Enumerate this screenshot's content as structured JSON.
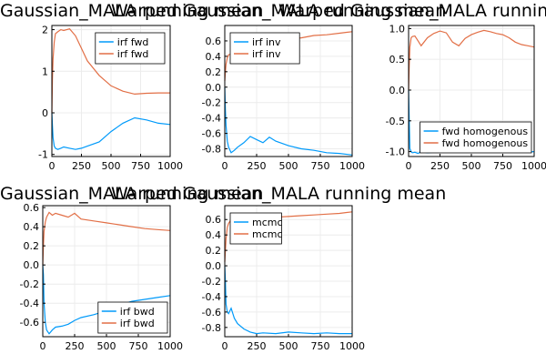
{
  "colors": {
    "series1": "#009AFA",
    "series2": "#E26F46"
  },
  "chart_data": [
    {
      "type": "line",
      "title": "Gaussian_MALA running mean",
      "xlim": [
        0,
        1000
      ],
      "ylim": [
        -1.05,
        2.1
      ],
      "xticks": [
        0,
        250,
        500,
        750,
        1000
      ],
      "yticks": [
        -1,
        0,
        1,
        2
      ],
      "ytick_labels": [
        "-1",
        "0",
        "1",
        "2"
      ],
      "grid": true,
      "legend": "top-right",
      "series": [
        {
          "name": "irf fwd",
          "x": [
            0,
            5,
            10,
            20,
            30,
            50,
            75,
            100,
            150,
            200,
            250,
            300,
            400,
            500,
            600,
            700,
            800,
            900,
            1000
          ],
          "y": [
            0,
            -0.3,
            -0.6,
            -0.8,
            -0.85,
            -0.88,
            -0.85,
            -0.82,
            -0.85,
            -0.88,
            -0.85,
            -0.8,
            -0.7,
            -0.45,
            -0.25,
            -0.12,
            -0.17,
            -0.25,
            -0.28
          ]
        },
        {
          "name": "irf fwd",
          "x": [
            0,
            5,
            10,
            20,
            30,
            50,
            75,
            100,
            150,
            200,
            250,
            300,
            400,
            500,
            600,
            700,
            800,
            900,
            1000
          ],
          "y": [
            0,
            0.8,
            1.3,
            1.7,
            1.9,
            1.95,
            2.0,
            1.98,
            2.02,
            1.85,
            1.55,
            1.25,
            0.9,
            0.65,
            0.52,
            0.45,
            0.47,
            0.48,
            0.48
          ]
        }
      ]
    },
    {
      "type": "line",
      "title": "Warped Gaussian_MALA running mean",
      "xlim": [
        0,
        1000
      ],
      "ylim": [
        -0.9,
        0.8
      ],
      "xticks": [
        0,
        250,
        500,
        750,
        1000
      ],
      "yticks": [
        -0.8,
        -0.6,
        -0.4,
        -0.2,
        0,
        0.2,
        0.4,
        0.6
      ],
      "ytick_labels": [
        "-0.8",
        "-0.6",
        "-0.4",
        "-0.2",
        "0.0",
        "0.2",
        "0.4",
        "0.6"
      ],
      "grid": true,
      "legend": "top-left",
      "series": [
        {
          "name": "irf inv",
          "x": [
            0,
            5,
            10,
            20,
            30,
            50,
            75,
            100,
            150,
            200,
            250,
            300,
            350,
            400,
            500,
            600,
            700,
            800,
            900,
            1000
          ],
          "y": [
            0,
            -0.3,
            -0.5,
            -0.7,
            -0.78,
            -0.85,
            -0.82,
            -0.78,
            -0.72,
            -0.64,
            -0.68,
            -0.72,
            -0.65,
            -0.7,
            -0.76,
            -0.8,
            -0.82,
            -0.85,
            -0.86,
            -0.88
          ]
        },
        {
          "name": "irf inv",
          "x": [
            0,
            5,
            10,
            20,
            30,
            50,
            75,
            100,
            150,
            200,
            250,
            300,
            350,
            400,
            500,
            600,
            700,
            800,
            900,
            1000
          ],
          "y": [
            0.08,
            0.2,
            0.3,
            0.38,
            0.42,
            0.43,
            0.44,
            0.45,
            0.46,
            0.48,
            0.52,
            0.56,
            0.6,
            0.62,
            0.63,
            0.64,
            0.67,
            0.68,
            0.7,
            0.72
          ]
        }
      ]
    },
    {
      "type": "line",
      "title": "Warped Gaussian_MALA running mean",
      "xlim": [
        0,
        1000
      ],
      "ylim": [
        -1.08,
        1.05
      ],
      "xticks": [
        0,
        250,
        500,
        750,
        1000
      ],
      "yticks": [
        -1,
        -0.5,
        0,
        0.5,
        1
      ],
      "ytick_labels": [
        "-1.0",
        "-0.5",
        "0.0",
        "0.5",
        "1.0"
      ],
      "grid": true,
      "legend": "bottom-right",
      "series": [
        {
          "name": "fwd homogenous",
          "x": [
            0,
            5,
            10,
            20,
            30,
            50,
            75,
            100,
            150,
            200,
            250,
            300,
            400,
            500,
            600,
            700,
            800,
            900,
            1000
          ],
          "y": [
            0,
            -0.5,
            -0.95,
            -1.0,
            -1.02,
            -1.01,
            -1.03,
            -1.0,
            -1.02,
            -1.01,
            -1.0,
            -1.01,
            -1.0,
            -1.01,
            -1.0,
            -1.01,
            -1.0,
            -1.01,
            -1.0
          ]
        },
        {
          "name": "fwd homogenous",
          "x": [
            0,
            5,
            10,
            20,
            30,
            50,
            75,
            100,
            150,
            200,
            250,
            300,
            350,
            400,
            450,
            500,
            550,
            600,
            650,
            700,
            750,
            800,
            850,
            900,
            950,
            1000
          ],
          "y": [
            0,
            0.4,
            0.7,
            0.85,
            0.87,
            0.88,
            0.8,
            0.72,
            0.85,
            0.92,
            0.96,
            0.93,
            0.78,
            0.72,
            0.84,
            0.9,
            0.94,
            0.97,
            0.95,
            0.92,
            0.9,
            0.85,
            0.78,
            0.74,
            0.72,
            0.7
          ]
        }
      ]
    },
    {
      "type": "line",
      "title": "Gaussian_MALA running mean",
      "xlim": [
        0,
        1000
      ],
      "ylim": [
        -0.75,
        0.62
      ],
      "xticks": [
        0,
        250,
        500,
        750,
        1000
      ],
      "yticks": [
        -0.6,
        -0.4,
        -0.2,
        0,
        0.2,
        0.4,
        0.6
      ],
      "ytick_labels": [
        "-0.6",
        "-0.4",
        "-0.2",
        "0.0",
        "0.2",
        "0.4",
        "0.6"
      ],
      "grid": true,
      "legend": "bottom-right",
      "series": [
        {
          "name": "irf bwd",
          "x": [
            0,
            5,
            10,
            20,
            30,
            50,
            75,
            100,
            150,
            200,
            250,
            300,
            400,
            500,
            600,
            700,
            800,
            900,
            1000
          ],
          "y": [
            0,
            -0.1,
            -0.4,
            -0.6,
            -0.68,
            -0.72,
            -0.68,
            -0.65,
            -0.64,
            -0.62,
            -0.58,
            -0.55,
            -0.52,
            -0.48,
            -0.42,
            -0.38,
            -0.36,
            -0.34,
            -0.32
          ]
        },
        {
          "name": "irf bwd",
          "x": [
            0,
            5,
            10,
            20,
            30,
            50,
            75,
            100,
            150,
            200,
            250,
            300,
            400,
            500,
            600,
            700,
            800,
            900,
            1000
          ],
          "y": [
            0,
            0.2,
            0.35,
            0.45,
            0.5,
            0.55,
            0.52,
            0.54,
            0.52,
            0.5,
            0.54,
            0.48,
            0.46,
            0.44,
            0.42,
            0.4,
            0.38,
            0.37,
            0.36
          ]
        }
      ]
    },
    {
      "type": "line",
      "title": "Warped Gaussian_MALA running mean",
      "xlim": [
        0,
        1000
      ],
      "ylim": [
        -0.92,
        0.78
      ],
      "xticks": [
        0,
        250,
        500,
        750,
        1000
      ],
      "yticks": [
        -0.8,
        -0.6,
        -0.4,
        -0.2,
        0,
        0.2,
        0.4,
        0.6
      ],
      "ytick_labels": [
        "-0.8",
        "-0.6",
        "-0.4",
        "-0.2",
        "0.0",
        "0.2",
        "0.4",
        "0.6"
      ],
      "grid": true,
      "legend": "top-left",
      "series": [
        {
          "name": "mcmc",
          "x": [
            0,
            5,
            10,
            20,
            30,
            50,
            75,
            100,
            150,
            200,
            250,
            300,
            400,
            500,
            600,
            700,
            800,
            900,
            1000
          ],
          "y": [
            0,
            -0.2,
            -0.5,
            -0.6,
            -0.62,
            -0.55,
            -0.68,
            -0.75,
            -0.82,
            -0.86,
            -0.88,
            -0.87,
            -0.88,
            -0.86,
            -0.87,
            -0.88,
            -0.87,
            -0.88,
            -0.88
          ]
        },
        {
          "name": "mcmc",
          "x": [
            0,
            5,
            10,
            20,
            30,
            50,
            75,
            100,
            150,
            200,
            250,
            300,
            400,
            500,
            600,
            700,
            800,
            900,
            1000
          ],
          "y": [
            0.05,
            0.2,
            0.35,
            0.5,
            0.55,
            0.6,
            0.58,
            0.62,
            0.6,
            0.62,
            0.6,
            0.62,
            0.63,
            0.64,
            0.65,
            0.66,
            0.67,
            0.68,
            0.7
          ]
        }
      ]
    }
  ]
}
